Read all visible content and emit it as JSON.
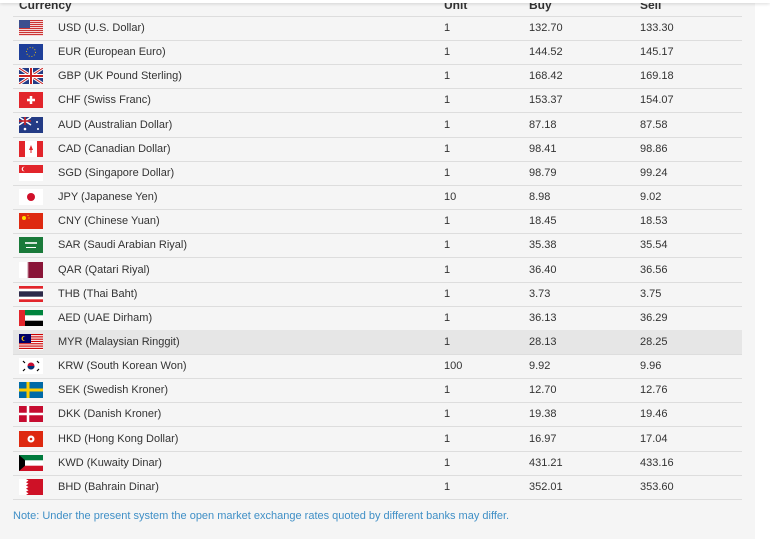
{
  "table": {
    "headers": {
      "currency": "Currency",
      "unit": "Unit",
      "buy": "Buy",
      "sell": "Sell"
    },
    "rows": [
      {
        "flag": "us-flag-icon",
        "currency": "USD (U.S. Dollar)",
        "unit": "1",
        "buy": "132.70",
        "sell": "133.30"
      },
      {
        "flag": "eu-flag-icon",
        "currency": "EUR (European Euro)",
        "unit": "1",
        "buy": "144.52",
        "sell": "145.17"
      },
      {
        "flag": "uk-flag-icon",
        "currency": "GBP (UK Pound Sterling)",
        "unit": "1",
        "buy": "168.42",
        "sell": "169.18"
      },
      {
        "flag": "ch-flag-icon",
        "currency": "CHF (Swiss Franc)",
        "unit": "1",
        "buy": "153.37",
        "sell": "154.07"
      },
      {
        "flag": "au-flag-icon",
        "currency": "AUD (Australian Dollar)",
        "unit": "1",
        "buy": "87.18",
        "sell": "87.58"
      },
      {
        "flag": "ca-flag-icon",
        "currency": "CAD (Canadian Dollar)",
        "unit": "1",
        "buy": "98.41",
        "sell": "98.86"
      },
      {
        "flag": "sg-flag-icon",
        "currency": "SGD (Singapore Dollar)",
        "unit": "1",
        "buy": "98.79",
        "sell": "99.24"
      },
      {
        "flag": "jp-flag-icon",
        "currency": "JPY (Japanese Yen)",
        "unit": "10",
        "buy": "8.98",
        "sell": "9.02"
      },
      {
        "flag": "cn-flag-icon",
        "currency": "CNY (Chinese Yuan)",
        "unit": "1",
        "buy": "18.45",
        "sell": "18.53"
      },
      {
        "flag": "sa-flag-icon",
        "currency": "SAR (Saudi Arabian Riyal)",
        "unit": "1",
        "buy": "35.38",
        "sell": "35.54"
      },
      {
        "flag": "qa-flag-icon",
        "currency": "QAR (Qatari Riyal)",
        "unit": "1",
        "buy": "36.40",
        "sell": "36.56"
      },
      {
        "flag": "th-flag-icon",
        "currency": "THB (Thai Baht)",
        "unit": "1",
        "buy": "3.73",
        "sell": "3.75"
      },
      {
        "flag": "ae-flag-icon",
        "currency": "AED (UAE Dirham)",
        "unit": "1",
        "buy": "36.13",
        "sell": "36.29"
      },
      {
        "flag": "my-flag-icon",
        "currency": "MYR (Malaysian Ringgit)",
        "unit": "1",
        "buy": "28.13",
        "sell": "28.25",
        "highlighted": true
      },
      {
        "flag": "kr-flag-icon",
        "currency": "KRW (South Korean Won)",
        "unit": "100",
        "buy": "9.92",
        "sell": "9.96"
      },
      {
        "flag": "se-flag-icon",
        "currency": "SEK (Swedish Kroner)",
        "unit": "1",
        "buy": "12.70",
        "sell": "12.76"
      },
      {
        "flag": "dk-flag-icon",
        "currency": "DKK (Danish Kroner)",
        "unit": "1",
        "buy": "19.38",
        "sell": "19.46"
      },
      {
        "flag": "hk-flag-icon",
        "currency": "HKD (Hong Kong Dollar)",
        "unit": "1",
        "buy": "16.97",
        "sell": "17.04"
      },
      {
        "flag": "kw-flag-icon",
        "currency": "KWD (Kuwaity Dinar)",
        "unit": "1",
        "buy": "431.21",
        "sell": "433.16"
      },
      {
        "flag": "bh-flag-icon",
        "currency": "BHD (Bahrain Dinar)",
        "unit": "1",
        "buy": "352.01",
        "sell": "353.60"
      }
    ]
  },
  "note": "Note: Under the present system the open market exchange rates quoted by different banks may differ.",
  "colors": {
    "note": "#3f8fc6",
    "highlight_row": "#e6e6e6",
    "panel": "#f5f5f5"
  }
}
